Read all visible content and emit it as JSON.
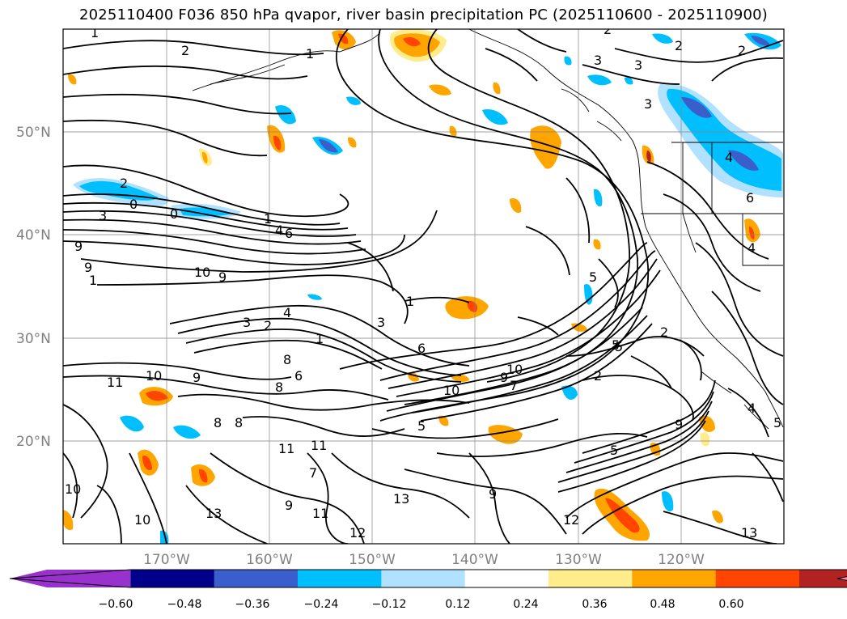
{
  "title": "2025110400 F036 850 hPa qvapor, river basin precipitation PC (2025110600 - 2025110900)",
  "lat_labels": [
    "50°N",
    "40°N",
    "30°N",
    "20°N"
  ],
  "lon_labels": [
    "170°W",
    "160°W",
    "150°W",
    "140°W",
    "130°W",
    "120°W"
  ],
  "colorbar": {
    "ticks": [
      "−0.60",
      "−0.48",
      "−0.36",
      "−0.24",
      "−0.12",
      "0.12",
      "0.24",
      "0.36",
      "0.48",
      "0.60"
    ],
    "colors": [
      "#9932cc",
      "#00008b",
      "#3a5fcd",
      "#00bfff",
      "#b0e2ff",
      "#ffffff",
      "#ffec8b",
      "#ffa500",
      "#ff4500",
      "#b22222",
      "#ff88aa"
    ]
  },
  "contour_labels": [
    "1",
    "2",
    "1",
    "3",
    "3",
    "2",
    "2",
    "3",
    "2",
    "2",
    "0",
    "0",
    "3",
    "1",
    "4",
    "6",
    "9",
    "9",
    "10",
    "9",
    "1",
    "2",
    "3",
    "4",
    "1",
    "3",
    "1",
    "5",
    "6",
    "8",
    "6",
    "8",
    "10",
    "9",
    "9",
    "10",
    "10",
    "7",
    "11",
    "10",
    "9",
    "8",
    "2",
    "4",
    "5",
    "5",
    "5",
    "7",
    "9",
    "11",
    "11",
    "8",
    "10",
    "11",
    "13",
    "9",
    "12",
    "13",
    "12",
    "13",
    "6",
    "4",
    "4",
    "5",
    "2",
    "5"
  ]
}
